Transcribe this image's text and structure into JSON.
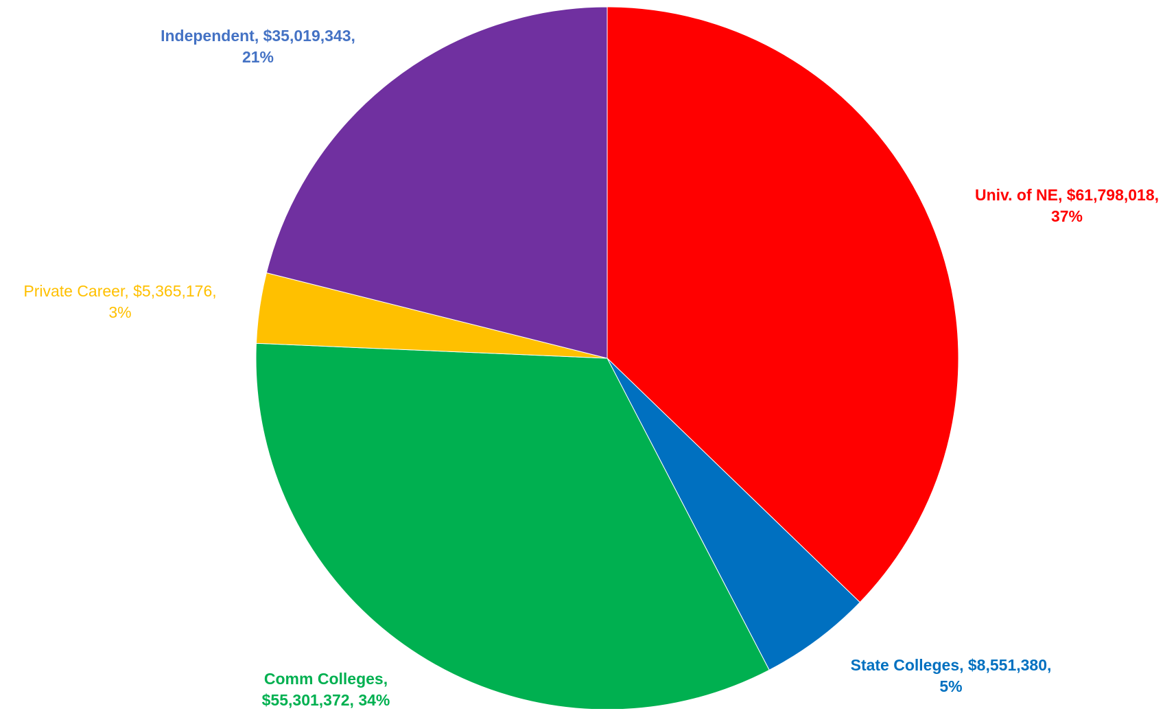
{
  "chart_data": {
    "type": "pie",
    "title": "",
    "slices": [
      {
        "label": "Univ. of NE",
        "value": 61798018,
        "value_text": "$61,798,018,",
        "percent_text": "37%",
        "color": "#FF0000",
        "label_color": "#FF0000"
      },
      {
        "label": "State Colleges",
        "value": 8551380,
        "value_text": "$8,551,380,",
        "percent_text": "5%",
        "color": "#0070C0",
        "label_color": "#0070C0"
      },
      {
        "label": "Comm Colleges",
        "value": 55301372,
        "value_text": "$55,301,372, 34%",
        "percent_text": "",
        "color": "#00B050",
        "label_color": "#00B050"
      },
      {
        "label": "Private Career",
        "value": 5365176,
        "value_text": "$5,365,176,",
        "percent_text": "3%",
        "color": "#FFC000",
        "label_color": "#FFC000"
      },
      {
        "label": "Independent",
        "value": 35019343,
        "value_text": "$35,019,343,",
        "percent_text": "21%",
        "color": "#7030A0",
        "label_color": "#4472C4"
      }
    ],
    "start_angle_deg": 0,
    "direction": "clockwise",
    "legend": "none",
    "data_labels": "outside"
  },
  "labels": {
    "univ": {
      "line1": "Univ. of NE, $61,798,018,",
      "line2": "37%"
    },
    "state": {
      "line1": "State Colleges, $8,551,380,",
      "line2": "5%"
    },
    "comm": {
      "line1": "Comm Colleges,",
      "line2": "$55,301,372, 34%"
    },
    "private": {
      "line1": "Private Career, $5,365,176,",
      "line2": "3%"
    },
    "indep": {
      "line1": "Independent, $35,019,343,",
      "line2": "21%"
    }
  }
}
